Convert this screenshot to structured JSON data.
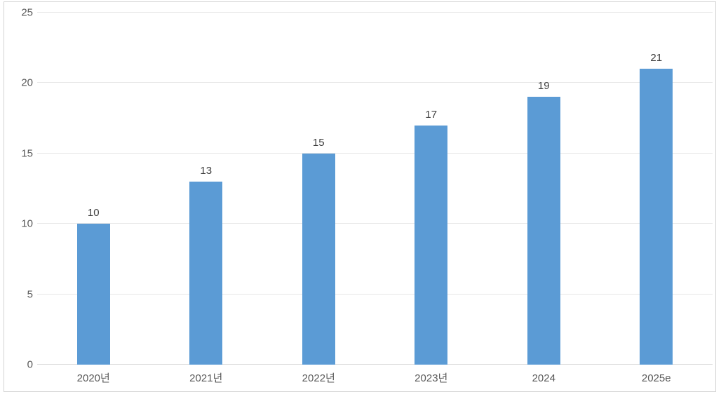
{
  "chart_data": {
    "type": "bar",
    "categories": [
      "2020년",
      "2021년",
      "2022년",
      "2023년",
      "2024",
      "2025e"
    ],
    "values": [
      10,
      13,
      15,
      17,
      19,
      21
    ],
    "data_labels": [
      "10",
      "13",
      "15",
      "17",
      "19",
      "21"
    ],
    "title": "",
    "xlabel": "",
    "ylabel": "",
    "ylim": [
      0,
      25
    ],
    "yticks": [
      0,
      5,
      10,
      15,
      20,
      25
    ],
    "grid": "horizontal",
    "legend": "none",
    "colors": {
      "bar": "#5B9BD5",
      "gridline": "#E6E6E6",
      "axis_line": "#D9D9D9",
      "tick_label": "#595959",
      "data_label": "#404040",
      "frame_border": "#D5D5D5",
      "background": "#FFFFFF"
    }
  }
}
